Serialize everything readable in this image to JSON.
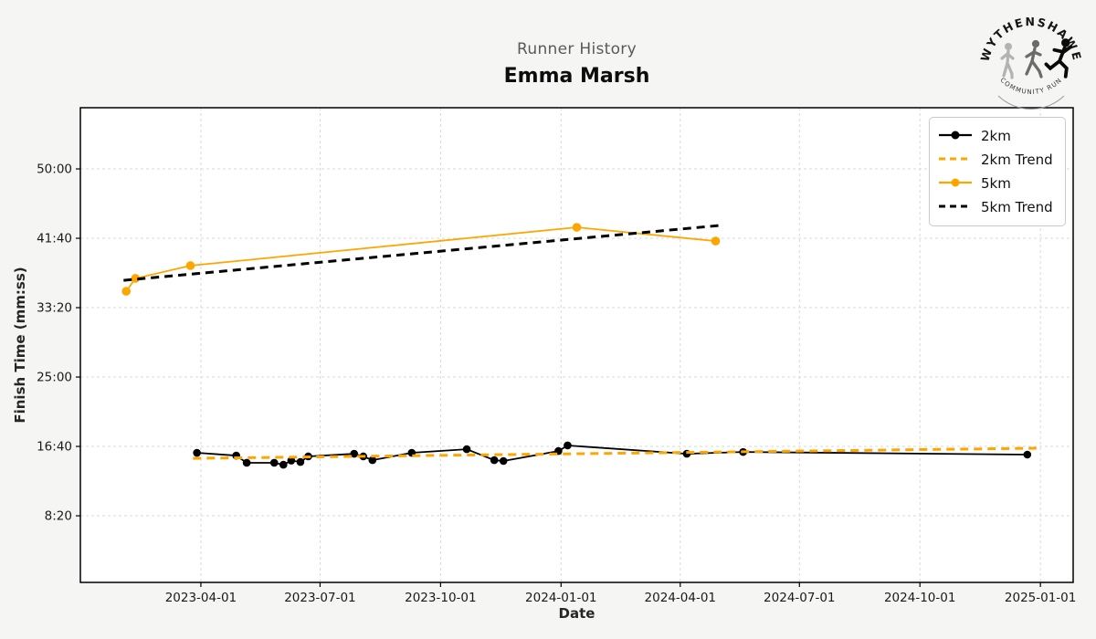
{
  "header": {
    "title": "Runner History",
    "subtitle": "Emma Marsh"
  },
  "logo": {
    "top_text": "WYTHENSHAWE",
    "bottom_text": "COMMUNITY RUN"
  },
  "legend": {
    "items": [
      {
        "label": "2km"
      },
      {
        "label": "2km Trend"
      },
      {
        "label": "5km"
      },
      {
        "label": "5km Trend"
      }
    ]
  },
  "chart_data": {
    "type": "line",
    "title": "Runner History",
    "subtitle": "Emma Marsh",
    "xlabel": "Date",
    "ylabel": "Finish Time (mm:ss)",
    "grid": true,
    "legend_position": "upper right",
    "xlim": [
      "2022-12-30",
      "2025-01-26"
    ],
    "ylim_seconds": [
      20,
      3441
    ],
    "x_ticks": [
      "2023-04-01",
      "2023-07-01",
      "2023-10-01",
      "2024-01-01",
      "2024-04-01",
      "2024-07-01",
      "2024-10-01",
      "2025-01-01"
    ],
    "y_ticks": [
      {
        "seconds": 3000,
        "label": "50:00"
      },
      {
        "seconds": 2500,
        "label": "41:40"
      },
      {
        "seconds": 2000,
        "label": "33:20"
      },
      {
        "seconds": 1500,
        "label": "25:00"
      },
      {
        "seconds": 1000,
        "label": "16:40"
      },
      {
        "seconds": 500,
        "label": "8:20"
      }
    ],
    "colors": {
      "orange": "#FFA500",
      "black": "#000000"
    },
    "series": [
      {
        "name": "2km",
        "color": "#000000",
        "style": "solid",
        "markers": true,
        "line_width": 1.8,
        "marker_radius": 4.3,
        "points": [
          {
            "date": "2023-03-29",
            "seconds": 954,
            "time": "15:54"
          },
          {
            "date": "2023-04-28",
            "seconds": 934,
            "time": "15:34"
          },
          {
            "date": "2023-05-06",
            "seconds": 882,
            "time": "14:42"
          },
          {
            "date": "2023-05-27",
            "seconds": 882,
            "time": "14:42"
          },
          {
            "date": "2023-06-03",
            "seconds": 868,
            "time": "14:28"
          },
          {
            "date": "2023-06-09",
            "seconds": 898,
            "time": "14:58"
          },
          {
            "date": "2023-06-16",
            "seconds": 888,
            "time": "14:48"
          },
          {
            "date": "2023-06-22",
            "seconds": 928,
            "time": "15:28"
          },
          {
            "date": "2023-07-27",
            "seconds": 947,
            "time": "15:47"
          },
          {
            "date": "2023-08-03",
            "seconds": 928,
            "time": "15:28"
          },
          {
            "date": "2023-08-10",
            "seconds": 901,
            "time": "15:01"
          },
          {
            "date": "2023-09-09",
            "seconds": 954,
            "time": "15:54"
          },
          {
            "date": "2023-10-21",
            "seconds": 980,
            "time": "16:20"
          },
          {
            "date": "2023-11-11",
            "seconds": 901,
            "time": "15:01"
          },
          {
            "date": "2023-11-18",
            "seconds": 895,
            "time": "14:55"
          },
          {
            "date": "2023-12-30",
            "seconds": 967,
            "time": "16:07"
          },
          {
            "date": "2024-01-06",
            "seconds": 1007,
            "time": "16:47"
          },
          {
            "date": "2024-04-06",
            "seconds": 947,
            "time": "15:47"
          },
          {
            "date": "2024-05-19",
            "seconds": 960,
            "time": "16:00"
          },
          {
            "date": "2024-12-22",
            "seconds": 941,
            "time": "15:41"
          }
        ]
      },
      {
        "name": "2km Trend",
        "color": "#FFA500",
        "style": "dashed",
        "markers": false,
        "line_width": 3,
        "dash": "9 6",
        "points": [
          {
            "date": "2023-03-26",
            "seconds": 914,
            "time": "15:14"
          },
          {
            "date": "2024-12-29",
            "seconds": 987,
            "time": "16:27"
          }
        ]
      },
      {
        "name": "5km",
        "color": "#FFA500",
        "style": "solid",
        "markers": true,
        "line_width": 1.8,
        "marker_radius": 4.8,
        "points": [
          {
            "date": "2023-02-03",
            "seconds": 2118,
            "time": "35:18"
          },
          {
            "date": "2023-02-10",
            "seconds": 2211,
            "time": "36:51"
          },
          {
            "date": "2023-03-24",
            "seconds": 2303,
            "time": "38:23"
          },
          {
            "date": "2024-01-13",
            "seconds": 2579,
            "time": "42:59"
          },
          {
            "date": "2024-04-28",
            "seconds": 2480,
            "time": "41:20"
          }
        ]
      },
      {
        "name": "5km Trend",
        "color": "#000000",
        "style": "dashed",
        "markers": false,
        "line_width": 3,
        "dash": "9 6",
        "points": [
          {
            "date": "2023-02-01",
            "seconds": 2197,
            "time": "36:37"
          },
          {
            "date": "2024-05-01",
            "seconds": 2592,
            "time": "43:12"
          }
        ]
      }
    ]
  }
}
